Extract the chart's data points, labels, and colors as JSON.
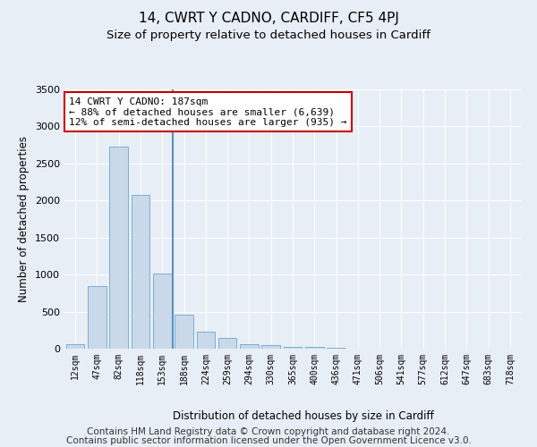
{
  "title": "14, CWRT Y CADNO, CARDIFF, CF5 4PJ",
  "subtitle": "Size of property relative to detached houses in Cardiff",
  "xlabel": "Distribution of detached houses by size in Cardiff",
  "ylabel": "Number of detached properties",
  "categories": [
    "12sqm",
    "47sqm",
    "82sqm",
    "118sqm",
    "153sqm",
    "188sqm",
    "224sqm",
    "259sqm",
    "294sqm",
    "330sqm",
    "365sqm",
    "400sqm",
    "436sqm",
    "471sqm",
    "506sqm",
    "541sqm",
    "577sqm",
    "612sqm",
    "647sqm",
    "683sqm",
    "718sqm"
  ],
  "values": [
    60,
    850,
    2730,
    2070,
    1010,
    460,
    235,
    145,
    65,
    50,
    30,
    25,
    15,
    0,
    0,
    0,
    0,
    0,
    0,
    0,
    0
  ],
  "bar_color": "#c9d9ea",
  "bar_edge_color": "#7aafd4",
  "highlight_bar_index": 5,
  "ylim": [
    0,
    3500
  ],
  "yticks": [
    0,
    500,
    1000,
    1500,
    2000,
    2500,
    3000,
    3500
  ],
  "annotation_line1": "14 CWRT Y CADNO: 187sqm",
  "annotation_line2": "← 88% of detached houses are smaller (6,639)",
  "annotation_line3": "12% of semi-detached houses are larger (935) →",
  "annotation_box_color": "#ffffff",
  "annotation_box_edge_color": "#cc0000",
  "footer_line1": "Contains HM Land Registry data © Crown copyright and database right 2024.",
  "footer_line2": "Contains public sector information licensed under the Open Government Licence v3.0.",
  "background_color": "#e8eef5",
  "plot_bg_color": "#e8eef5",
  "title_fontsize": 11,
  "subtitle_fontsize": 9.5,
  "footer_fontsize": 7.5
}
